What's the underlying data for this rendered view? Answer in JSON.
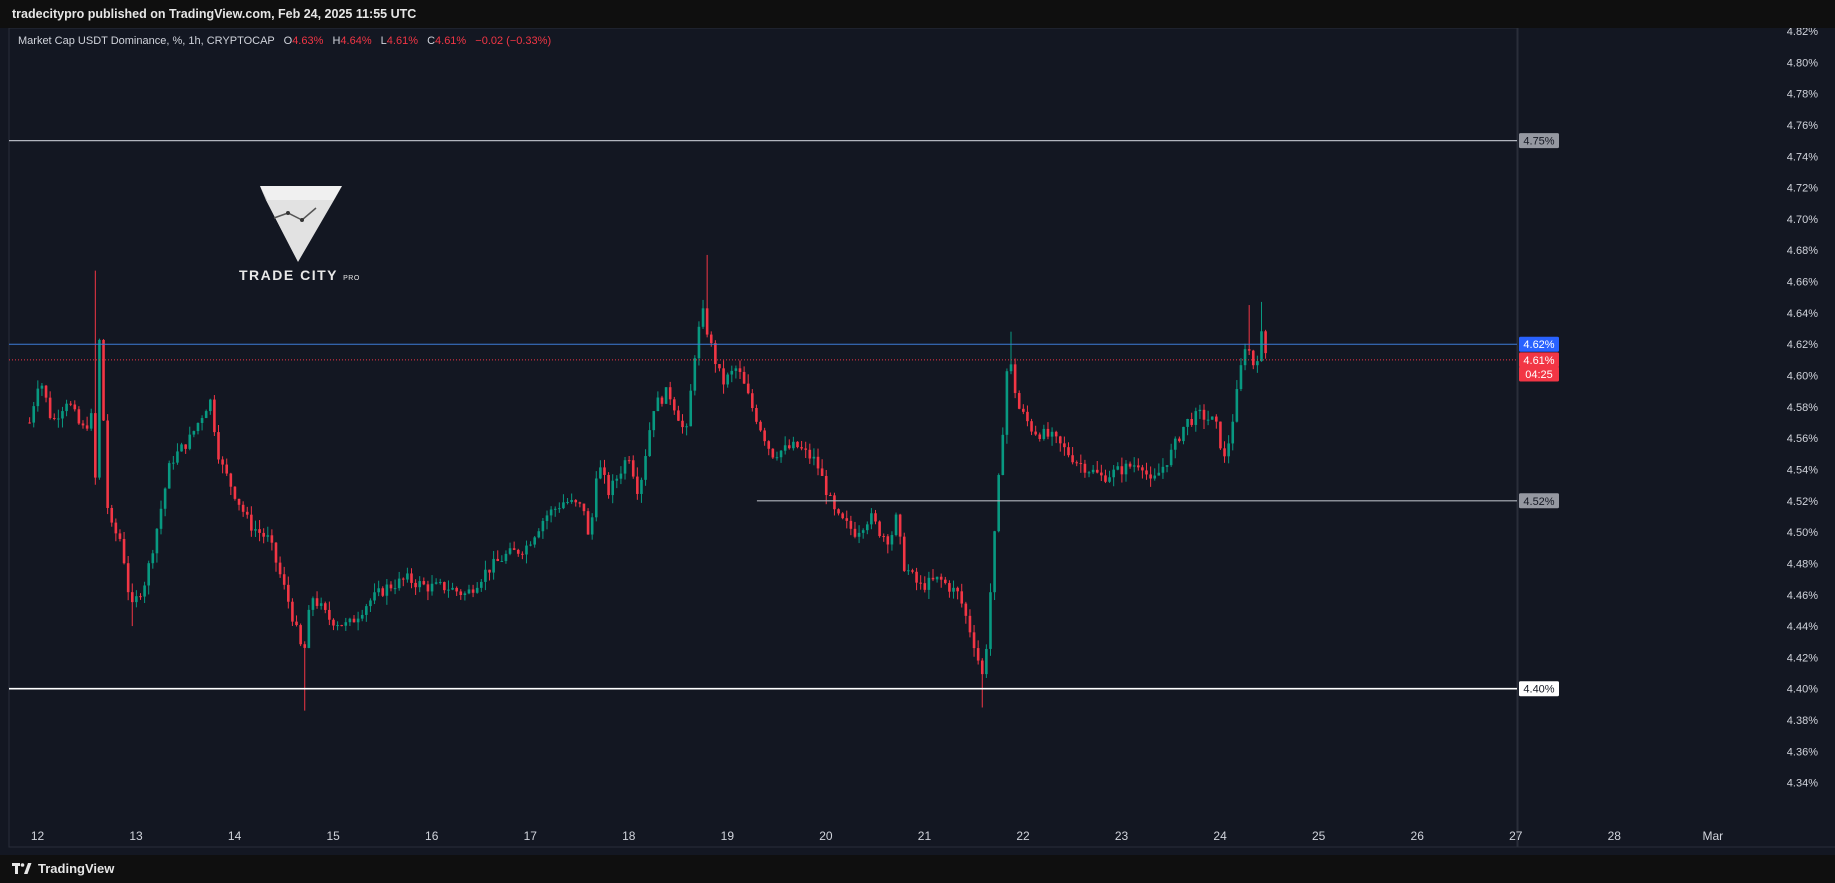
{
  "header": {
    "publish_line": "tradecitypro published on TradingView.com, Feb 24, 2025 11:55 UTC"
  },
  "legend": {
    "symbol": "Market Cap USDT Dominance, %, 1h, CRYPTOCAP",
    "o_label": "O",
    "o_value": "4.63%",
    "h_label": "H",
    "h_value": "4.64%",
    "l_label": "L",
    "l_value": "4.61%",
    "c_label": "C",
    "c_value": "4.61%",
    "change": "−0.02 (−0.33%)"
  },
  "branding": {
    "text": "TRADE CITY",
    "suffix": "PRO"
  },
  "footer": {
    "logo_text": "TradingView"
  },
  "colors": {
    "background": "#131722",
    "bull": "#089981",
    "bear": "#f23645",
    "current_line": "#2962ff",
    "level_line": "#b2b5be",
    "support_line": "#ffffff"
  },
  "chart_data": {
    "type": "candlestick",
    "y_unit": "%",
    "ylim": [
      4.33,
      4.825
    ],
    "y_ticks": [
      "4.82%",
      "4.80%",
      "4.78%",
      "4.76%",
      "4.74%",
      "4.72%",
      "4.70%",
      "4.68%",
      "4.66%",
      "4.64%",
      "4.62%",
      "4.60%",
      "4.58%",
      "4.56%",
      "4.54%",
      "4.52%",
      "4.50%",
      "4.48%",
      "4.46%",
      "4.44%",
      "4.42%",
      "4.40%",
      "4.38%",
      "4.36%",
      "4.34%"
    ],
    "x_ticks": [
      "12",
      "13",
      "14",
      "15",
      "16",
      "17",
      "18",
      "19",
      "20",
      "21",
      "22",
      "23",
      "24",
      "25",
      "26",
      "27",
      "28",
      "Mar"
    ],
    "price_labels": [
      {
        "text": "4.75%",
        "value": 4.75,
        "style": "gray"
      },
      {
        "text": "4.62%",
        "value": 4.62,
        "style": "blue"
      },
      {
        "text": "4.61%",
        "value": 4.61,
        "style": "red"
      },
      {
        "text": "04:25",
        "value": 4.601,
        "style": "red"
      },
      {
        "text": "4.52%",
        "value": 4.52,
        "style": "gray"
      },
      {
        "text": "4.40%",
        "value": 4.4,
        "style": "white"
      }
    ],
    "horizontal_levels": [
      {
        "value": 4.75,
        "x_start": 11.9,
        "style": "level"
      },
      {
        "value": 4.62,
        "x_start": 11.9,
        "style": "current"
      },
      {
        "value": 4.61,
        "x_start": 11.9,
        "style": "last-dotted"
      },
      {
        "value": 4.52,
        "x_start": 19.3,
        "style": "level"
      },
      {
        "value": 4.4,
        "x_start": 11.9,
        "style": "support"
      }
    ],
    "waypoints": [
      [
        11.92,
        4.57
      ],
      [
        12.02,
        4.6
      ],
      [
        12.15,
        4.57
      ],
      [
        12.3,
        4.585
      ],
      [
        12.45,
        4.565
      ],
      [
        12.57,
        4.575
      ],
      [
        12.58,
        4.52
      ],
      [
        12.63,
        4.625
      ],
      [
        12.72,
        4.505
      ],
      [
        12.85,
        4.495
      ],
      [
        12.95,
        4.45
      ],
      [
        13.1,
        4.47
      ],
      [
        13.22,
        4.505
      ],
      [
        13.35,
        4.545
      ],
      [
        13.55,
        4.56
      ],
      [
        13.75,
        4.585
      ],
      [
        13.85,
        4.545
      ],
      [
        14.0,
        4.525
      ],
      [
        14.15,
        4.505
      ],
      [
        14.35,
        4.495
      ],
      [
        14.55,
        4.455
      ],
      [
        14.7,
        4.42
      ],
      [
        14.78,
        4.46
      ],
      [
        14.95,
        4.445
      ],
      [
        15.15,
        4.44
      ],
      [
        15.35,
        4.455
      ],
      [
        15.55,
        4.465
      ],
      [
        15.75,
        4.47
      ],
      [
        15.95,
        4.465
      ],
      [
        16.15,
        4.465
      ],
      [
        16.35,
        4.46
      ],
      [
        16.55,
        4.475
      ],
      [
        16.75,
        4.485
      ],
      [
        16.95,
        4.49
      ],
      [
        17.15,
        4.51
      ],
      [
        17.35,
        4.52
      ],
      [
        17.55,
        4.515
      ],
      [
        17.6,
        4.49
      ],
      [
        17.68,
        4.545
      ],
      [
        17.8,
        4.525
      ],
      [
        18.0,
        4.55
      ],
      [
        18.1,
        4.525
      ],
      [
        18.25,
        4.58
      ],
      [
        18.4,
        4.59
      ],
      [
        18.5,
        4.575
      ],
      [
        18.58,
        4.56
      ],
      [
        18.68,
        4.62
      ],
      [
        18.75,
        4.64
      ],
      [
        18.85,
        4.615
      ],
      [
        18.95,
        4.595
      ],
      [
        19.1,
        4.605
      ],
      [
        19.25,
        4.58
      ],
      [
        19.45,
        4.55
      ],
      [
        19.7,
        4.555
      ],
      [
        19.9,
        4.545
      ],
      [
        20.1,
        4.51
      ],
      [
        20.3,
        4.5
      ],
      [
        20.45,
        4.51
      ],
      [
        20.55,
        4.5
      ],
      [
        20.65,
        4.495
      ],
      [
        20.72,
        4.51
      ],
      [
        20.78,
        4.48
      ],
      [
        20.95,
        4.465
      ],
      [
        21.15,
        4.47
      ],
      [
        21.35,
        4.46
      ],
      [
        21.5,
        4.43
      ],
      [
        21.6,
        4.405
      ],
      [
        21.68,
        4.47
      ],
      [
        21.75,
        4.53
      ],
      [
        21.8,
        4.57
      ],
      [
        21.85,
        4.615
      ],
      [
        21.95,
        4.58
      ],
      [
        22.1,
        4.565
      ],
      [
        22.3,
        4.56
      ],
      [
        22.55,
        4.545
      ],
      [
        22.8,
        4.535
      ],
      [
        23.0,
        4.54
      ],
      [
        23.2,
        4.545
      ],
      [
        23.3,
        4.53
      ],
      [
        23.5,
        4.55
      ],
      [
        23.65,
        4.57
      ],
      [
        23.8,
        4.575
      ],
      [
        23.95,
        4.57
      ],
      [
        24.05,
        4.545
      ],
      [
        24.15,
        4.58
      ],
      [
        24.25,
        4.62
      ],
      [
        24.3,
        4.615
      ],
      [
        24.35,
        4.605
      ],
      [
        24.42,
        4.625
      ],
      [
        24.48,
        4.61
      ]
    ]
  }
}
